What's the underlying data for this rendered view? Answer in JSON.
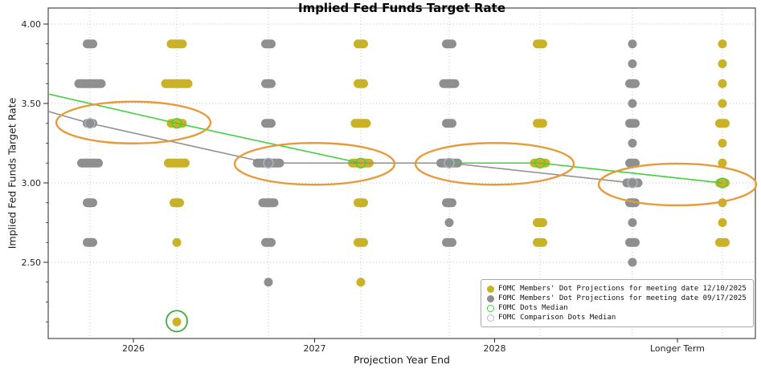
{
  "chart_data": {
    "type": "scatter",
    "subtype": "fomc-dot-plot",
    "title": "Implied Fed Funds Target Rate",
    "xlabel": "Projection Year End",
    "ylabel": "Implied Fed Funds Target Rate",
    "ylim": [
      2.0,
      4.1
    ],
    "grid": "dotted",
    "x_categories": [
      "2026",
      "2027",
      "2028",
      "Longer Term"
    ],
    "y_ticks": [
      {
        "value": 4.0,
        "label": "4.00"
      },
      {
        "value": 3.5,
        "label": "3.50"
      },
      {
        "value": 3.0,
        "label": "3.00"
      },
      {
        "value": 2.5,
        "label": "2.50"
      }
    ],
    "x_ticks": [
      {
        "label": "2026",
        "cols": [
          "g2026",
          "y2026"
        ]
      },
      {
        "label": "2027",
        "cols": [
          "g2027",
          "y2027"
        ]
      },
      {
        "label": "2028",
        "cols": [
          "g2028",
          "y2028"
        ]
      },
      {
        "label": "Longer Term",
        "cols": [
          "glt",
          "ylt"
        ]
      }
    ],
    "colors": {
      "dots_1210": "#c9b227",
      "dots_0917": "#8f8f8f",
      "median_green": "#3fd03f",
      "comparison_gray": "#8f8f8f",
      "comparison_ring": "#a9bac4",
      "highlight_orange": "#e79a3b",
      "circle_green": "#3fae3f",
      "grid": "#c6c6c6",
      "axis_text": "#262626"
    },
    "columns": [
      {
        "id": "g2026",
        "year": "2026",
        "meeting": "09/17/2025",
        "color_key": "dots_0917",
        "dots": [
          {
            "value": 3.875,
            "count": 2
          },
          {
            "value": 3.625,
            "count": 5
          },
          {
            "value": 3.375,
            "count": 2
          },
          {
            "value": 3.125,
            "count": 4
          },
          {
            "value": 2.875,
            "count": 2
          },
          {
            "value": 2.625,
            "count": 2
          }
        ]
      },
      {
        "id": "y2026",
        "year": "2026",
        "meeting": "12/10/2025",
        "color_key": "dots_1210",
        "dots": [
          {
            "value": 3.875,
            "count": 3
          },
          {
            "value": 3.625,
            "count": 5
          },
          {
            "value": 3.375,
            "count": 3
          },
          {
            "value": 3.125,
            "count": 4
          },
          {
            "value": 2.875,
            "count": 2
          },
          {
            "value": 2.625,
            "count": 1
          },
          {
            "value": 2.125,
            "count": 1
          }
        ]
      },
      {
        "id": "g2027",
        "year": "2027",
        "meeting": "09/17/2025",
        "color_key": "dots_0917",
        "dots": [
          {
            "value": 3.875,
            "count": 2
          },
          {
            "value": 3.625,
            "count": 2
          },
          {
            "value": 3.375,
            "count": 2
          },
          {
            "value": 3.125,
            "count": 5
          },
          {
            "value": 2.875,
            "count": 3
          },
          {
            "value": 2.625,
            "count": 2
          },
          {
            "value": 2.375,
            "count": 1
          }
        ]
      },
      {
        "id": "y2027",
        "year": "2027",
        "meeting": "12/10/2025",
        "color_key": "dots_1210",
        "dots": [
          {
            "value": 3.875,
            "count": 2
          },
          {
            "value": 3.625,
            "count": 2
          },
          {
            "value": 3.375,
            "count": 3
          },
          {
            "value": 3.125,
            "count": 4
          },
          {
            "value": 2.875,
            "count": 2
          },
          {
            "value": 2.625,
            "count": 2
          },
          {
            "value": 2.375,
            "count": 1
          }
        ]
      },
      {
        "id": "g2028",
        "year": "2028",
        "meeting": "09/17/2025",
        "color_key": "dots_0917",
        "dots": [
          {
            "value": 3.875,
            "count": 2
          },
          {
            "value": 3.625,
            "count": 3
          },
          {
            "value": 3.375,
            "count": 2
          },
          {
            "value": 3.125,
            "count": 4
          },
          {
            "value": 2.875,
            "count": 2
          },
          {
            "value": 2.75,
            "count": 1
          },
          {
            "value": 2.625,
            "count": 2
          }
        ]
      },
      {
        "id": "y2028",
        "year": "2028",
        "meeting": "12/10/2025",
        "color_key": "dots_1210",
        "dots": [
          {
            "value": 3.875,
            "count": 2
          },
          {
            "value": 3.375,
            "count": 2
          },
          {
            "value": 3.125,
            "count": 3
          },
          {
            "value": 2.75,
            "count": 2
          },
          {
            "value": 2.625,
            "count": 2
          }
        ]
      },
      {
        "id": "glt",
        "year": "Longer Term",
        "meeting": "09/17/2025",
        "color_key": "dots_0917",
        "dots": [
          {
            "value": 3.875,
            "count": 1
          },
          {
            "value": 3.75,
            "count": 1
          },
          {
            "value": 3.625,
            "count": 2
          },
          {
            "value": 3.5,
            "count": 1
          },
          {
            "value": 3.375,
            "count": 2
          },
          {
            "value": 3.25,
            "count": 1
          },
          {
            "value": 3.125,
            "count": 2
          },
          {
            "value": 3.0,
            "count": 3
          },
          {
            "value": 2.875,
            "count": 2
          },
          {
            "value": 2.75,
            "count": 1
          },
          {
            "value": 2.625,
            "count": 2
          },
          {
            "value": 2.5,
            "count": 1
          }
        ]
      },
      {
        "id": "ylt",
        "year": "Longer Term",
        "meeting": "12/10/2025",
        "color_key": "dots_1210",
        "dots": [
          {
            "value": 3.875,
            "count": 1
          },
          {
            "value": 3.75,
            "count": 1
          },
          {
            "value": 3.625,
            "count": 1
          },
          {
            "value": 3.5,
            "count": 1
          },
          {
            "value": 3.375,
            "count": 2
          },
          {
            "value": 3.25,
            "count": 1
          },
          {
            "value": 3.125,
            "count": 1
          },
          {
            "value": 3.0,
            "count": 2
          },
          {
            "value": 2.875,
            "count": 1
          },
          {
            "value": 2.75,
            "count": 1
          },
          {
            "value": 2.625,
            "count": 2
          }
        ]
      }
    ],
    "medians": [
      {
        "id": "fomc-dots-median",
        "line_color": "median_green",
        "marker_color": "median_green",
        "points": [
          {
            "col": "edge-left",
            "value": 3.56
          },
          {
            "col": "y2026",
            "value": 3.375
          },
          {
            "col": "y2027",
            "value": 3.125
          },
          {
            "col": "y2028",
            "value": 3.125
          },
          {
            "col": "ylt",
            "value": 3.0
          }
        ]
      },
      {
        "id": "fomc-comparison-dots-median",
        "line_color": "comparison_gray",
        "marker_color": "comparison_ring",
        "points": [
          {
            "col": "edge-left",
            "value": 3.45
          },
          {
            "col": "g2026",
            "value": 3.375
          },
          {
            "col": "g2027",
            "value": 3.125
          },
          {
            "col": "g2028",
            "value": 3.125
          },
          {
            "col": "glt",
            "value": 3.0
          }
        ]
      }
    ],
    "annotations": {
      "ellipses": [
        {
          "cols": [
            "g2026",
            "y2026"
          ],
          "value": 3.38
        },
        {
          "cols": [
            "g2027",
            "y2027"
          ],
          "value": 3.12
        },
        {
          "cols": [
            "g2028",
            "y2028"
          ],
          "value": 3.12
        },
        {
          "cols": [
            "glt",
            "ylt"
          ],
          "value": 2.99
        }
      ],
      "circle": {
        "col": "y2026",
        "value": 2.13
      }
    }
  },
  "legend": {
    "items": [
      {
        "label": "FOMC Members' Dot Projections for meeting date 12/10/2025",
        "marker": "filled",
        "color_key": "dots_1210"
      },
      {
        "label": "FOMC Members' Dot Projections for meeting date 09/17/2025",
        "marker": "filled",
        "color_key": "dots_0917"
      },
      {
        "label": "FOMC Dots Median",
        "marker": "open",
        "color_key": "median_green"
      },
      {
        "label": "FOMC Comparison Dots Median",
        "marker": "open",
        "color_key": "comparison_ring"
      }
    ]
  }
}
